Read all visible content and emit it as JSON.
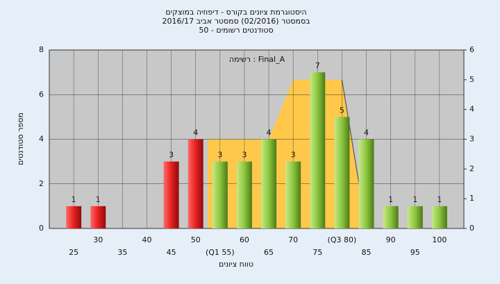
{
  "chart_data": {
    "type": "bar",
    "title": [
      "היסטוגרמת ציונים בקורס - דיפוזיה במוצקים",
      "בסמסטר  (02/2016)  סמסטר אביב 2016/17",
      "סטודנטים רשומים - 50"
    ],
    "annotation": "רשימה : Final_A",
    "y_label": "מספר סטודנטים",
    "x_label": "טווח ציונים",
    "categories": [
      "25",
      "30",
      "35",
      "40",
      "45",
      "50",
      "(Q1 55)",
      "60",
      "65",
      "70",
      "75",
      "(Q3 80)",
      "85",
      "90",
      "95",
      "100"
    ],
    "values": [
      1,
      1,
      0,
      0,
      3,
      4,
      3,
      3,
      4,
      3,
      7,
      5,
      4,
      1,
      1,
      1
    ],
    "colors": [
      "red",
      "red",
      "red",
      "red",
      "red",
      "red",
      "green",
      "green",
      "green",
      "green",
      "green",
      "green",
      "green",
      "green",
      "green",
      "green"
    ],
    "ylim": [
      0,
      8
    ],
    "yticks": [
      0,
      2,
      4,
      6,
      8
    ],
    "y2lim": [
      0,
      6
    ],
    "y2ticks": [
      0,
      1,
      2,
      3,
      4,
      5,
      6
    ],
    "grid": true,
    "overlay": {
      "type": "area",
      "axis": "y2",
      "color": "#ffc84a",
      "line_color": "#555555",
      "xlim": [
        20,
        105
      ],
      "x": [
        52.5,
        52.5,
        65,
        70,
        80,
        83.5
      ],
      "values": [
        0,
        3,
        3,
        5,
        5,
        1.5
      ]
    }
  }
}
